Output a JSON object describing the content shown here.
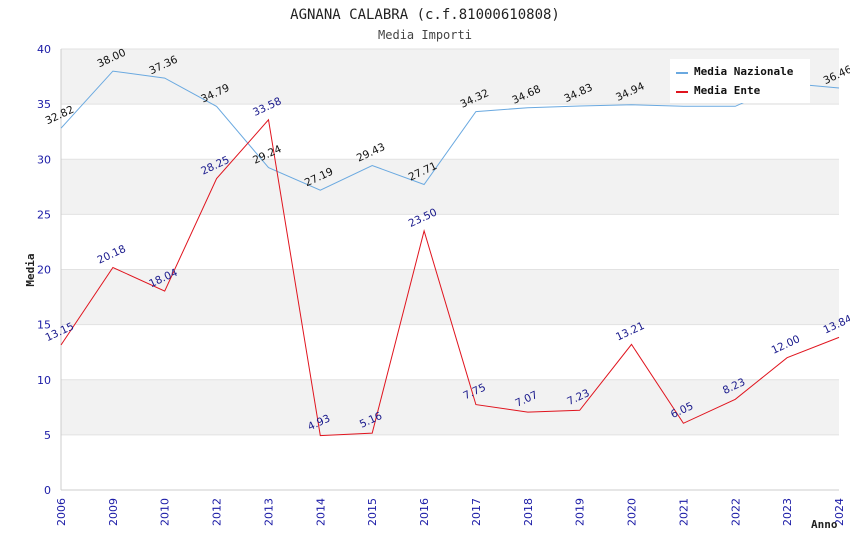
{
  "chart_data": {
    "type": "line",
    "title": "AGNANA CALABRA (c.f.81000610808)",
    "subtitle": "Media Importi",
    "xlabel": "Anno",
    "ylabel": "Media",
    "ylim": [
      0,
      40
    ],
    "yticks": [
      "0",
      "5",
      "10",
      "15",
      "20",
      "25",
      "30",
      "35",
      "40"
    ],
    "categories": [
      "2006",
      "2009",
      "2010",
      "2012",
      "2013",
      "2014",
      "2015",
      "2016",
      "2017",
      "2018",
      "2019",
      "2020",
      "2021",
      "2022",
      "2023",
      "2024"
    ],
    "grid": true,
    "legend_position": "top-right",
    "series": [
      {
        "name": "Media Nazionale",
        "color": "#6aa9e0",
        "label_color": "#111111",
        "values": [
          32.82,
          38.0,
          37.36,
          34.79,
          29.24,
          27.19,
          29.43,
          27.71,
          34.32,
          34.68,
          34.83,
          34.94,
          34.8,
          34.8,
          36.9,
          36.46
        ],
        "labels": [
          "32.82",
          "38.00",
          "37.36",
          "34.79",
          "29.24",
          "27.19",
          "29.43",
          "27.71",
          "34.32",
          "34.68",
          "34.83",
          "34.94",
          "",
          "",
          "",
          "36.46"
        ]
      },
      {
        "name": "Media Ente",
        "color": "#e0141e",
        "label_color": "#1a1a8c",
        "values": [
          13.15,
          20.18,
          18.04,
          28.25,
          33.58,
          4.93,
          5.16,
          23.5,
          7.75,
          7.07,
          7.23,
          13.21,
          6.05,
          8.23,
          12.0,
          13.84
        ],
        "labels": [
          "13.15",
          "20.18",
          "18.04",
          "28.25",
          "33.58",
          "4.93",
          "5.16",
          "23.50",
          "7.75",
          "7.07",
          "7.23",
          "13.21",
          "6.05",
          "8.23",
          "12.00",
          "13.84"
        ]
      }
    ]
  }
}
